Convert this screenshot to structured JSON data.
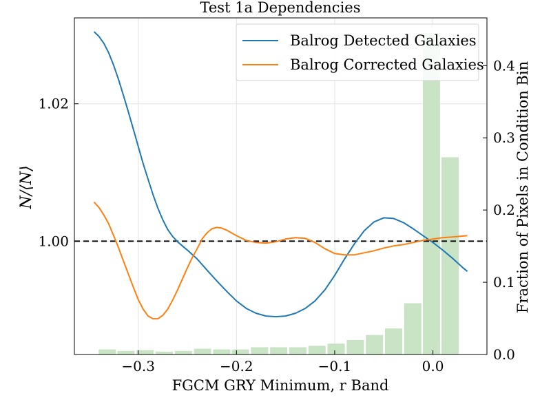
{
  "chart_data": {
    "type": "line",
    "title": "Test 1a Dependencies",
    "xlabel": "FGCM GRY Minimum, r Band",
    "ylabel": "N/⟨N⟩",
    "ylabel_right": "Fraction of Pixels in Condition Bin",
    "xlim": [
      -0.365,
      0.055
    ],
    "ylim": [
      0.9835,
      1.0325
    ],
    "ylim_right": [
      0,
      0.466
    ],
    "x_ticks": [
      -0.3,
      -0.2,
      -0.1,
      0.0
    ],
    "x_tick_labels": [
      "−0.3",
      "−0.2",
      "−0.1",
      "0.0"
    ],
    "y_ticks": [
      1.0,
      1.02
    ],
    "y_tick_labels": [
      "1.00",
      "1.02"
    ],
    "y_ticks_right": [
      0.0,
      0.1,
      0.2,
      0.3,
      0.4
    ],
    "y_tick_labels_right": [
      "0.0",
      "0.1",
      "0.2",
      "0.3",
      "0.4"
    ],
    "grid": true,
    "legend": "top-right",
    "reference_line": 1.0,
    "series": [
      {
        "name": "Balrog Detected Galaxies",
        "color": "#1f77b4",
        "x": [
          -0.345,
          -0.34,
          -0.335,
          -0.33,
          -0.325,
          -0.32,
          -0.315,
          -0.31,
          -0.305,
          -0.3,
          -0.295,
          -0.29,
          -0.285,
          -0.28,
          -0.275,
          -0.27,
          -0.265,
          -0.26,
          -0.255,
          -0.25,
          -0.24,
          -0.23,
          -0.22,
          -0.21,
          -0.2,
          -0.19,
          -0.18,
          -0.17,
          -0.16,
          -0.15,
          -0.14,
          -0.13,
          -0.12,
          -0.11,
          -0.1,
          -0.09,
          -0.08,
          -0.07,
          -0.06,
          -0.05,
          -0.04,
          -0.03,
          -0.02,
          -0.01,
          0.0,
          0.01,
          0.02,
          0.03,
          0.035
        ],
        "values": [
          1.0305,
          1.0298,
          1.0288,
          1.0274,
          1.0256,
          1.0235,
          1.0212,
          1.0188,
          1.0163,
          1.0138,
          1.0113,
          1.009,
          1.0068,
          1.0048,
          1.0031,
          1.0017,
          1.0007,
          0.9999,
          0.9993,
          0.9987,
          0.9974,
          0.9958,
          0.9942,
          0.9927,
          0.9913,
          0.9902,
          0.9895,
          0.9891,
          0.989,
          0.9891,
          0.9895,
          0.9902,
          0.9913,
          0.9929,
          0.995,
          0.9974,
          0.9996,
          1.0015,
          1.0028,
          1.0034,
          1.0033,
          1.0027,
          1.0018,
          1.0008,
          0.9998,
          0.9987,
          0.9975,
          0.9962,
          0.9956
        ]
      },
      {
        "name": "Balrog Corrected Galaxies",
        "color": "#ff7f0e",
        "x": [
          -0.345,
          -0.34,
          -0.335,
          -0.33,
          -0.325,
          -0.32,
          -0.315,
          -0.31,
          -0.305,
          -0.3,
          -0.295,
          -0.29,
          -0.285,
          -0.28,
          -0.275,
          -0.27,
          -0.265,
          -0.26,
          -0.255,
          -0.25,
          -0.245,
          -0.24,
          -0.235,
          -0.23,
          -0.225,
          -0.22,
          -0.215,
          -0.21,
          -0.2,
          -0.19,
          -0.18,
          -0.17,
          -0.16,
          -0.15,
          -0.14,
          -0.13,
          -0.12,
          -0.11,
          -0.1,
          -0.09,
          -0.08,
          -0.07,
          -0.06,
          -0.05,
          -0.04,
          -0.03,
          -0.02,
          -0.01,
          0.0,
          0.01,
          0.02,
          0.035
        ],
        "values": [
          1.0057,
          1.0049,
          1.0038,
          1.0025,
          1.0008,
          0.999,
          0.9971,
          0.9952,
          0.9933,
          0.9915,
          0.9901,
          0.9891,
          0.9887,
          0.9887,
          0.9892,
          0.9901,
          0.9914,
          0.9929,
          0.9945,
          0.9961,
          0.9976,
          0.9989,
          1.0003,
          1.0012,
          1.0018,
          1.002,
          1.0019,
          1.0016,
          1.0008,
          1.0001,
          0.9998,
          0.9997,
          0.9999,
          1.0003,
          1.0005,
          1.0004,
          0.9998,
          0.9989,
          0.9982,
          0.998,
          0.998,
          0.9983,
          0.9986,
          0.999,
          0.9993,
          0.9995,
          0.9998,
          1.0001,
          1.0003,
          1.0005,
          1.0006,
          1.0008
        ]
      }
    ],
    "histogram": {
      "color": "#c9e3c5",
      "x": [
        -0.3315,
        -0.3125,
        -0.293,
        -0.2735,
        -0.254,
        -0.2345,
        -0.215,
        -0.196,
        -0.1765,
        -0.157,
        -0.1375,
        -0.118,
        -0.0985,
        -0.079,
        -0.0595,
        -0.04,
        -0.0205,
        -0.0015,
        0.0175
      ],
      "values": [
        0.007,
        0.005,
        0.006,
        0.004,
        0.005,
        0.008,
        0.007,
        0.007,
        0.01,
        0.01,
        0.01,
        0.012,
        0.015,
        0.02,
        0.027,
        0.036,
        0.071,
        0.445,
        0.273
      ]
    }
  }
}
